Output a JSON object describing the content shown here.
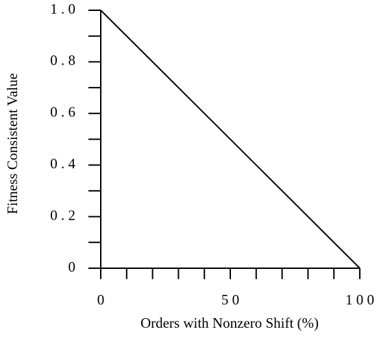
{
  "chart_data": {
    "type": "line",
    "xlabel": "Orders with Nonzero Shift (%)",
    "ylabel": "Fitness Consistent Value",
    "x": [
      0,
      100
    ],
    "series": [
      {
        "color": "#000000",
        "values": [
          1,
          0
        ]
      }
    ],
    "xlim": [
      0,
      100
    ],
    "xticks": [
      0,
      {
        "value": 50,
        "label": "5 0"
      },
      {
        "value": 100,
        "label": "1 0 0"
      }
    ],
    "xminor_ticks": [
      10,
      20,
      30,
      40,
      60,
      70,
      80,
      90
    ],
    "ylim": [
      0,
      1
    ],
    "yticks": [
      0,
      {
        "value": 0.2,
        "label": "0 . 2"
      },
      {
        "value": 0.4,
        "label": "0 . 4"
      },
      {
        "value": 0.6,
        "label": "0 . 6"
      },
      {
        "value": 0.8,
        "label": "0 . 8"
      },
      {
        "value": 1,
        "label": "1 . 0"
      }
    ],
    "yminor_ticks": [
      0.1,
      0.3,
      0.5,
      0.7,
      0.9
    ],
    "grid": false
  }
}
